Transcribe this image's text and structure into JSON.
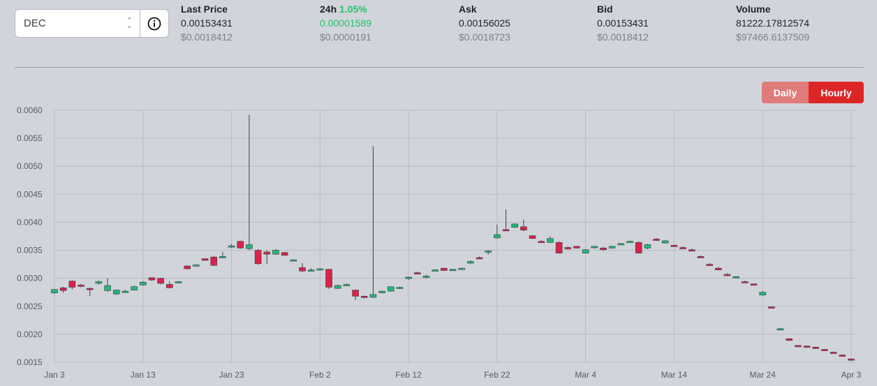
{
  "token_select": {
    "value": "DEC"
  },
  "stats": [
    {
      "label": "Last Price",
      "change": "",
      "v1": "0.00153431",
      "v2": "$0.0018412"
    },
    {
      "label": "24h",
      "change": "1.05%",
      "v1": "0.00001589",
      "v2": "$0.0000191"
    },
    {
      "label": "Ask",
      "change": "",
      "v1": "0.00156025",
      "v2": "$0.0018723"
    },
    {
      "label": "Bid",
      "change": "",
      "v1": "0.00153431",
      "v2": "$0.0018412"
    },
    {
      "label": "Volume",
      "change": "",
      "v1": "81222.17812574",
      "v2": "$97466.6137509"
    }
  ],
  "toggle": {
    "daily": "Daily",
    "hourly": "Hourly",
    "active": "hourly"
  },
  "colors": {
    "up": "#23b67a",
    "down": "#d9234a",
    "grid": "#b7bcc3",
    "active": "#dc2626"
  },
  "chart_data": {
    "type": "candlestick",
    "title": "",
    "xlabel": "",
    "ylabel": "",
    "ylim": [
      0.0015,
      0.006
    ],
    "y_ticks": [
      "0.0060",
      "0.0055",
      "0.0050",
      "0.0045",
      "0.0040",
      "0.0035",
      "0.0030",
      "0.0025",
      "0.0020",
      "0.0015"
    ],
    "x_ticks": [
      "Jan 3",
      "Jan 13",
      "Jan 23",
      "Feb 2",
      "Feb 12",
      "Feb 22",
      "Mar 4",
      "Mar 14",
      "Mar 24",
      "Apr 3"
    ],
    "grid": true,
    "candles": [
      {
        "d": 0,
        "o": 0.00274,
        "h": 0.0028,
        "l": 0.00272,
        "c": 0.0028
      },
      {
        "d": 1,
        "o": 0.00283,
        "h": 0.00285,
        "l": 0.00274,
        "c": 0.00278
      },
      {
        "d": 2,
        "o": 0.00295,
        "h": 0.00296,
        "l": 0.0028,
        "c": 0.00284
      },
      {
        "d": 3,
        "o": 0.00288,
        "h": 0.0029,
        "l": 0.00284,
        "c": 0.00287
      },
      {
        "d": 4,
        "o": 0.00282,
        "h": 0.00283,
        "l": 0.00268,
        "c": 0.0028
      },
      {
        "d": 5,
        "o": 0.00291,
        "h": 0.00296,
        "l": 0.00289,
        "c": 0.00294
      },
      {
        "d": 6,
        "o": 0.00278,
        "h": 0.003,
        "l": 0.00276,
        "c": 0.00287
      },
      {
        "d": 7,
        "o": 0.00272,
        "h": 0.0028,
        "l": 0.0027,
        "c": 0.00279
      },
      {
        "d": 8,
        "o": 0.00276,
        "h": 0.0028,
        "l": 0.00275,
        "c": 0.00277
      },
      {
        "d": 9,
        "o": 0.00279,
        "h": 0.00287,
        "l": 0.00278,
        "c": 0.00285
      },
      {
        "d": 10,
        "o": 0.00288,
        "h": 0.00295,
        "l": 0.00287,
        "c": 0.00293
      },
      {
        "d": 11,
        "o": 0.00301,
        "h": 0.00302,
        "l": 0.00295,
        "c": 0.00297
      },
      {
        "d": 12,
        "o": 0.003,
        "h": 0.00301,
        "l": 0.00289,
        "c": 0.00291
      },
      {
        "d": 13,
        "o": 0.00289,
        "h": 0.00295,
        "l": 0.00282,
        "c": 0.00283
      },
      {
        "d": 14,
        "o": 0.00293,
        "h": 0.00295,
        "l": 0.00292,
        "c": 0.00294
      },
      {
        "d": 15,
        "o": 0.00322,
        "h": 0.00323,
        "l": 0.00316,
        "c": 0.00317
      },
      {
        "d": 16,
        "o": 0.00324,
        "h": 0.00325,
        "l": 0.00323,
        "c": 0.00324
      },
      {
        "d": 17,
        "o": 0.00335,
        "h": 0.00336,
        "l": 0.00331,
        "c": 0.00332
      },
      {
        "d": 18,
        "o": 0.00338,
        "h": 0.0034,
        "l": 0.00322,
        "c": 0.00323
      },
      {
        "d": 19,
        "o": 0.00338,
        "h": 0.00347,
        "l": 0.00336,
        "c": 0.00339
      },
      {
        "d": 20,
        "o": 0.00357,
        "h": 0.00361,
        "l": 0.00354,
        "c": 0.00358
      },
      {
        "d": 21,
        "o": 0.00366,
        "h": 0.00367,
        "l": 0.00353,
        "c": 0.00354
      },
      {
        "d": 22,
        "o": 0.00353,
        "h": 0.00592,
        "l": 0.0035,
        "c": 0.0036
      },
      {
        "d": 23,
        "o": 0.0035,
        "h": 0.00352,
        "l": 0.00324,
        "c": 0.00326
      },
      {
        "d": 24,
        "o": 0.00347,
        "h": 0.0035,
        "l": 0.00325,
        "c": 0.00343
      },
      {
        "d": 25,
        "o": 0.00343,
        "h": 0.00352,
        "l": 0.00342,
        "c": 0.0035
      },
      {
        "d": 26,
        "o": 0.00346,
        "h": 0.00347,
        "l": 0.0034,
        "c": 0.00341
      },
      {
        "d": 27,
        "o": 0.00332,
        "h": 0.00334,
        "l": 0.00331,
        "c": 0.00333
      },
      {
        "d": 28,
        "o": 0.00319,
        "h": 0.00327,
        "l": 0.00311,
        "c": 0.00313
      },
      {
        "d": 29,
        "o": 0.00314,
        "h": 0.00318,
        "l": 0.00312,
        "c": 0.00315
      },
      {
        "d": 30,
        "o": 0.00317,
        "h": 0.00318,
        "l": 0.00316,
        "c": 0.00317
      },
      {
        "d": 31,
        "o": 0.00316,
        "h": 0.00317,
        "l": 0.00281,
        "c": 0.00284
      },
      {
        "d": 32,
        "o": 0.00282,
        "h": 0.00289,
        "l": 0.00281,
        "c": 0.00287
      },
      {
        "d": 33,
        "o": 0.00289,
        "h": 0.00291,
        "l": 0.00288,
        "c": 0.00289
      },
      {
        "d": 34,
        "o": 0.00279,
        "h": 0.0028,
        "l": 0.00261,
        "c": 0.00268
      },
      {
        "d": 35,
        "o": 0.00268,
        "h": 0.00269,
        "l": 0.00264,
        "c": 0.00266
      },
      {
        "d": 36,
        "o": 0.00266,
        "h": 0.00536,
        "l": 0.00265,
        "c": 0.00271
      },
      {
        "d": 37,
        "o": 0.00274,
        "h": 0.00278,
        "l": 0.00273,
        "c": 0.00277
      },
      {
        "d": 38,
        "o": 0.00277,
        "h": 0.00285,
        "l": 0.00276,
        "c": 0.00285
      },
      {
        "d": 39,
        "o": 0.00283,
        "h": 0.00285,
        "l": 0.00282,
        "c": 0.00284
      },
      {
        "d": 40,
        "o": 0.003,
        "h": 0.00303,
        "l": 0.00297,
        "c": 0.00302
      },
      {
        "d": 41,
        "o": 0.0031,
        "h": 0.00312,
        "l": 0.00307,
        "c": 0.00309
      },
      {
        "d": 42,
        "o": 0.00302,
        "h": 0.00306,
        "l": 0.003,
        "c": 0.00304
      },
      {
        "d": 43,
        "o": 0.00315,
        "h": 0.00316,
        "l": 0.00313,
        "c": 0.00315
      },
      {
        "d": 44,
        "o": 0.00318,
        "h": 0.00319,
        "l": 0.00313,
        "c": 0.00314
      },
      {
        "d": 45,
        "o": 0.00315,
        "h": 0.00317,
        "l": 0.00314,
        "c": 0.00316
      },
      {
        "d": 46,
        "o": 0.00317,
        "h": 0.00319,
        "l": 0.00316,
        "c": 0.00318
      },
      {
        "d": 47,
        "o": 0.00327,
        "h": 0.00332,
        "l": 0.00326,
        "c": 0.0033
      },
      {
        "d": 48,
        "o": 0.00337,
        "h": 0.00339,
        "l": 0.00334,
        "c": 0.00336
      },
      {
        "d": 49,
        "o": 0.00348,
        "h": 0.0035,
        "l": 0.00342,
        "c": 0.00349
      },
      {
        "d": 50,
        "o": 0.00372,
        "h": 0.00396,
        "l": 0.00371,
        "c": 0.00378
      },
      {
        "d": 51,
        "o": 0.00387,
        "h": 0.00423,
        "l": 0.00385,
        "c": 0.00385
      },
      {
        "d": 52,
        "o": 0.00391,
        "h": 0.00398,
        "l": 0.0039,
        "c": 0.00397
      },
      {
        "d": 53,
        "o": 0.00392,
        "h": 0.00405,
        "l": 0.00384,
        "c": 0.00386
      },
      {
        "d": 54,
        "o": 0.00376,
        "h": 0.00377,
        "l": 0.0037,
        "c": 0.00371
      },
      {
        "d": 55,
        "o": 0.00366,
        "h": 0.00368,
        "l": 0.00363,
        "c": 0.00364
      },
      {
        "d": 56,
        "o": 0.00364,
        "h": 0.00375,
        "l": 0.00363,
        "c": 0.00371
      },
      {
        "d": 57,
        "o": 0.00364,
        "h": 0.00366,
        "l": 0.00344,
        "c": 0.00345
      },
      {
        "d": 58,
        "o": 0.00355,
        "h": 0.00357,
        "l": 0.00351,
        "c": 0.00353
      },
      {
        "d": 59,
        "o": 0.00357,
        "h": 0.00358,
        "l": 0.00353,
        "c": 0.00354
      },
      {
        "d": 60,
        "o": 0.00345,
        "h": 0.00352,
        "l": 0.00344,
        "c": 0.00351
      },
      {
        "d": 61,
        "o": 0.00355,
        "h": 0.00358,
        "l": 0.00353,
        "c": 0.00357
      },
      {
        "d": 62,
        "o": 0.00354,
        "h": 0.00356,
        "l": 0.00349,
        "c": 0.00351
      },
      {
        "d": 63,
        "o": 0.00354,
        "h": 0.00358,
        "l": 0.00353,
        "c": 0.00357
      },
      {
        "d": 64,
        "o": 0.0036,
        "h": 0.00363,
        "l": 0.00359,
        "c": 0.00362
      },
      {
        "d": 65,
        "o": 0.00366,
        "h": 0.00367,
        "l": 0.00365,
        "c": 0.00366
      },
      {
        "d": 66,
        "o": 0.00364,
        "h": 0.00366,
        "l": 0.00344,
        "c": 0.00345
      },
      {
        "d": 67,
        "o": 0.00354,
        "h": 0.00362,
        "l": 0.00352,
        "c": 0.0036
      },
      {
        "d": 68,
        "o": 0.0037,
        "h": 0.00372,
        "l": 0.00367,
        "c": 0.00368
      },
      {
        "d": 69,
        "o": 0.00363,
        "h": 0.00368,
        "l": 0.00362,
        "c": 0.00367
      },
      {
        "d": 70,
        "o": 0.00359,
        "h": 0.0036,
        "l": 0.00357,
        "c": 0.00358
      },
      {
        "d": 71,
        "o": 0.00355,
        "h": 0.00357,
        "l": 0.00353,
        "c": 0.00354
      },
      {
        "d": 72,
        "o": 0.00351,
        "h": 0.00353,
        "l": 0.00349,
        "c": 0.0035
      },
      {
        "d": 73,
        "o": 0.00339,
        "h": 0.00341,
        "l": 0.00336,
        "c": 0.00337
      },
      {
        "d": 74,
        "o": 0.00325,
        "h": 0.00327,
        "l": 0.00323,
        "c": 0.00324
      },
      {
        "d": 75,
        "o": 0.00318,
        "h": 0.0032,
        "l": 0.00314,
        "c": 0.00315
      },
      {
        "d": 76,
        "o": 0.00307,
        "h": 0.00309,
        "l": 0.00304,
        "c": 0.00305
      },
      {
        "d": 77,
        "o": 0.00303,
        "h": 0.00304,
        "l": 0.00302,
        "c": 0.00303
      },
      {
        "d": 78,
        "o": 0.00294,
        "h": 0.00296,
        "l": 0.00292,
        "c": 0.00293
      },
      {
        "d": 79,
        "o": 0.0029,
        "h": 0.00291,
        "l": 0.00288,
        "c": 0.00289
      },
      {
        "d": 80,
        "o": 0.0027,
        "h": 0.00277,
        "l": 0.00269,
        "c": 0.00275
      },
      {
        "d": 81,
        "o": 0.00249,
        "h": 0.0025,
        "l": 0.00246,
        "c": 0.00247
      },
      {
        "d": 82,
        "o": 0.0021,
        "h": 0.00211,
        "l": 0.00209,
        "c": 0.0021
      },
      {
        "d": 83,
        "o": 0.00192,
        "h": 0.00193,
        "l": 0.00188,
        "c": 0.00189
      },
      {
        "d": 84,
        "o": 0.0018,
        "h": 0.00181,
        "l": 0.00178,
        "c": 0.00179
      },
      {
        "d": 85,
        "o": 0.00179,
        "h": 0.0018,
        "l": 0.00177,
        "c": 0.00178
      },
      {
        "d": 86,
        "o": 0.00177,
        "h": 0.00178,
        "l": 0.00174,
        "c": 0.00175
      },
      {
        "d": 87,
        "o": 0.00173,
        "h": 0.00174,
        "l": 0.00171,
        "c": 0.00172
      },
      {
        "d": 88,
        "o": 0.00168,
        "h": 0.00169,
        "l": 0.00165,
        "c": 0.00166
      },
      {
        "d": 89,
        "o": 0.00163,
        "h": 0.00164,
        "l": 0.0016,
        "c": 0.00161
      },
      {
        "d": 90,
        "o": 0.00156,
        "h": 0.00157,
        "l": 0.00153,
        "c": 0.00154
      }
    ]
  }
}
